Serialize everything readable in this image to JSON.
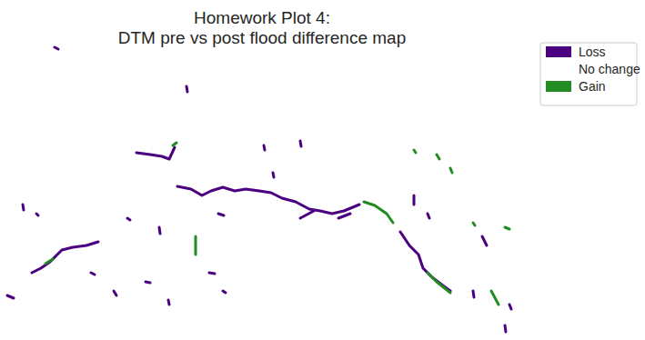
{
  "chart_data": {
    "type": "map",
    "title": "Homework Plot 4:\nDTM pre vs post flood difference map",
    "xlim": [
      0,
      575
    ],
    "ylim": [
      325,
      0
    ],
    "tick_labels": false,
    "grid": false,
    "legend": "upper right",
    "series": [
      {
        "name": "Loss",
        "color": "#4b0082",
        "features": [
          [
            [
              195,
              160
            ],
            [
              210,
              163
            ],
            [
              222,
              170
            ],
            [
              232,
              165
            ],
            [
              245,
              161
            ],
            [
              258,
              165
            ],
            [
              270,
              163
            ],
            [
              285,
              165
            ],
            [
              298,
              167
            ],
            [
              310,
              173
            ],
            [
              325,
              177
            ],
            [
              340,
              185
            ],
            [
              352,
              187
            ],
            [
              365,
              190
            ],
            [
              378,
              187
            ],
            [
              395,
              180
            ]
          ],
          [
            [
              150,
              123
            ],
            [
              165,
              125
            ],
            [
              178,
              127
            ],
            [
              186,
              130
            ],
            [
              192,
              117
            ]
          ],
          [
            [
              35,
              255
            ],
            [
              45,
              250
            ],
            [
              55,
              243
            ],
            [
              68,
              230
            ],
            [
              80,
              227
            ],
            [
              95,
              225
            ],
            [
              108,
              221
            ]
          ],
          [
            [
              440,
              210
            ],
            [
              450,
              225
            ],
            [
              460,
              235
            ],
            [
              465,
              250
            ],
            [
              475,
              260
            ],
            [
              488,
              270
            ],
            [
              495,
              275
            ]
          ],
          [
            [
              455,
              170
            ],
            [
              455,
              180
            ]
          ],
          [
            [
              330,
              195
            ],
            [
              345,
              187
            ]
          ],
          [
            [
              372,
              195
            ],
            [
              385,
              190
            ]
          ],
          [
            [
              60,
              7
            ],
            [
              64,
              9
            ]
          ],
          [
            [
              205,
              50
            ],
            [
              206,
              56
            ]
          ],
          [
            [
              300,
              145
            ],
            [
              301,
              150
            ]
          ],
          [
            [
              330,
              110
            ],
            [
              331,
              116
            ]
          ],
          [
            [
              290,
              115
            ],
            [
              291,
              120
            ]
          ],
          [
            [
              240,
              190
            ],
            [
              246,
              192
            ]
          ],
          [
            [
              230,
              255
            ],
            [
              236,
              256
            ]
          ],
          [
            [
              125,
              275
            ],
            [
              128,
              280
            ]
          ],
          [
            [
              160,
              265
            ],
            [
              165,
              266
            ]
          ],
          [
            [
              175,
              205
            ],
            [
              176,
              212
            ]
          ],
          [
            [
              140,
              195
            ],
            [
              143,
              197
            ]
          ],
          [
            [
              100,
              255
            ],
            [
              104,
              257
            ]
          ],
          [
            [
              8,
              280
            ],
            [
              15,
              283
            ]
          ],
          [
            [
              25,
              180
            ],
            [
              26,
              186
            ]
          ],
          [
            [
              40,
              190
            ],
            [
              42,
              192
            ]
          ],
          [
            [
              520,
              275
            ],
            [
              521,
              282
            ]
          ],
          [
            [
              560,
              290
            ],
            [
              562,
              295
            ]
          ],
          [
            [
              555,
              313
            ],
            [
              556,
              320
            ]
          ],
          [
            [
              245,
              275
            ],
            [
              248,
              277
            ]
          ],
          [
            [
              185,
              285
            ],
            [
              186,
              290
            ]
          ],
          [
            [
              530,
              215
            ],
            [
              535,
              225
            ]
          ],
          [
            [
              470,
              190
            ],
            [
              472,
              195
            ]
          ]
        ]
      },
      {
        "name": "No change",
        "color": "#ffffff",
        "features": []
      },
      {
        "name": "Gain",
        "color": "#228b22",
        "features": [
          [
            [
              190,
              115
            ],
            [
              194,
              112
            ]
          ],
          [
            [
              215,
              215
            ],
            [
              215,
              235
            ]
          ],
          [
            [
              400,
              177
            ],
            [
              412,
              181
            ],
            [
              425,
              190
            ],
            [
              432,
              200
            ]
          ],
          [
            [
              470,
              255
            ],
            [
              480,
              265
            ],
            [
              490,
              273
            ],
            [
              495,
              277
            ]
          ],
          [
            [
              480,
              125
            ],
            [
              483,
              130
            ]
          ],
          [
            [
              495,
              140
            ],
            [
              497,
              145
            ]
          ],
          [
            [
              455,
              120
            ],
            [
              457,
              123
            ]
          ],
          [
            [
              540,
              275
            ],
            [
              548,
              290
            ]
          ],
          [
            [
              555,
              205
            ],
            [
              560,
              207
            ]
          ],
          [
            [
              50,
              245
            ],
            [
              58,
              240
            ]
          ],
          [
            [
              520,
              200
            ],
            [
              522,
              203
            ]
          ]
        ]
      }
    ]
  }
}
